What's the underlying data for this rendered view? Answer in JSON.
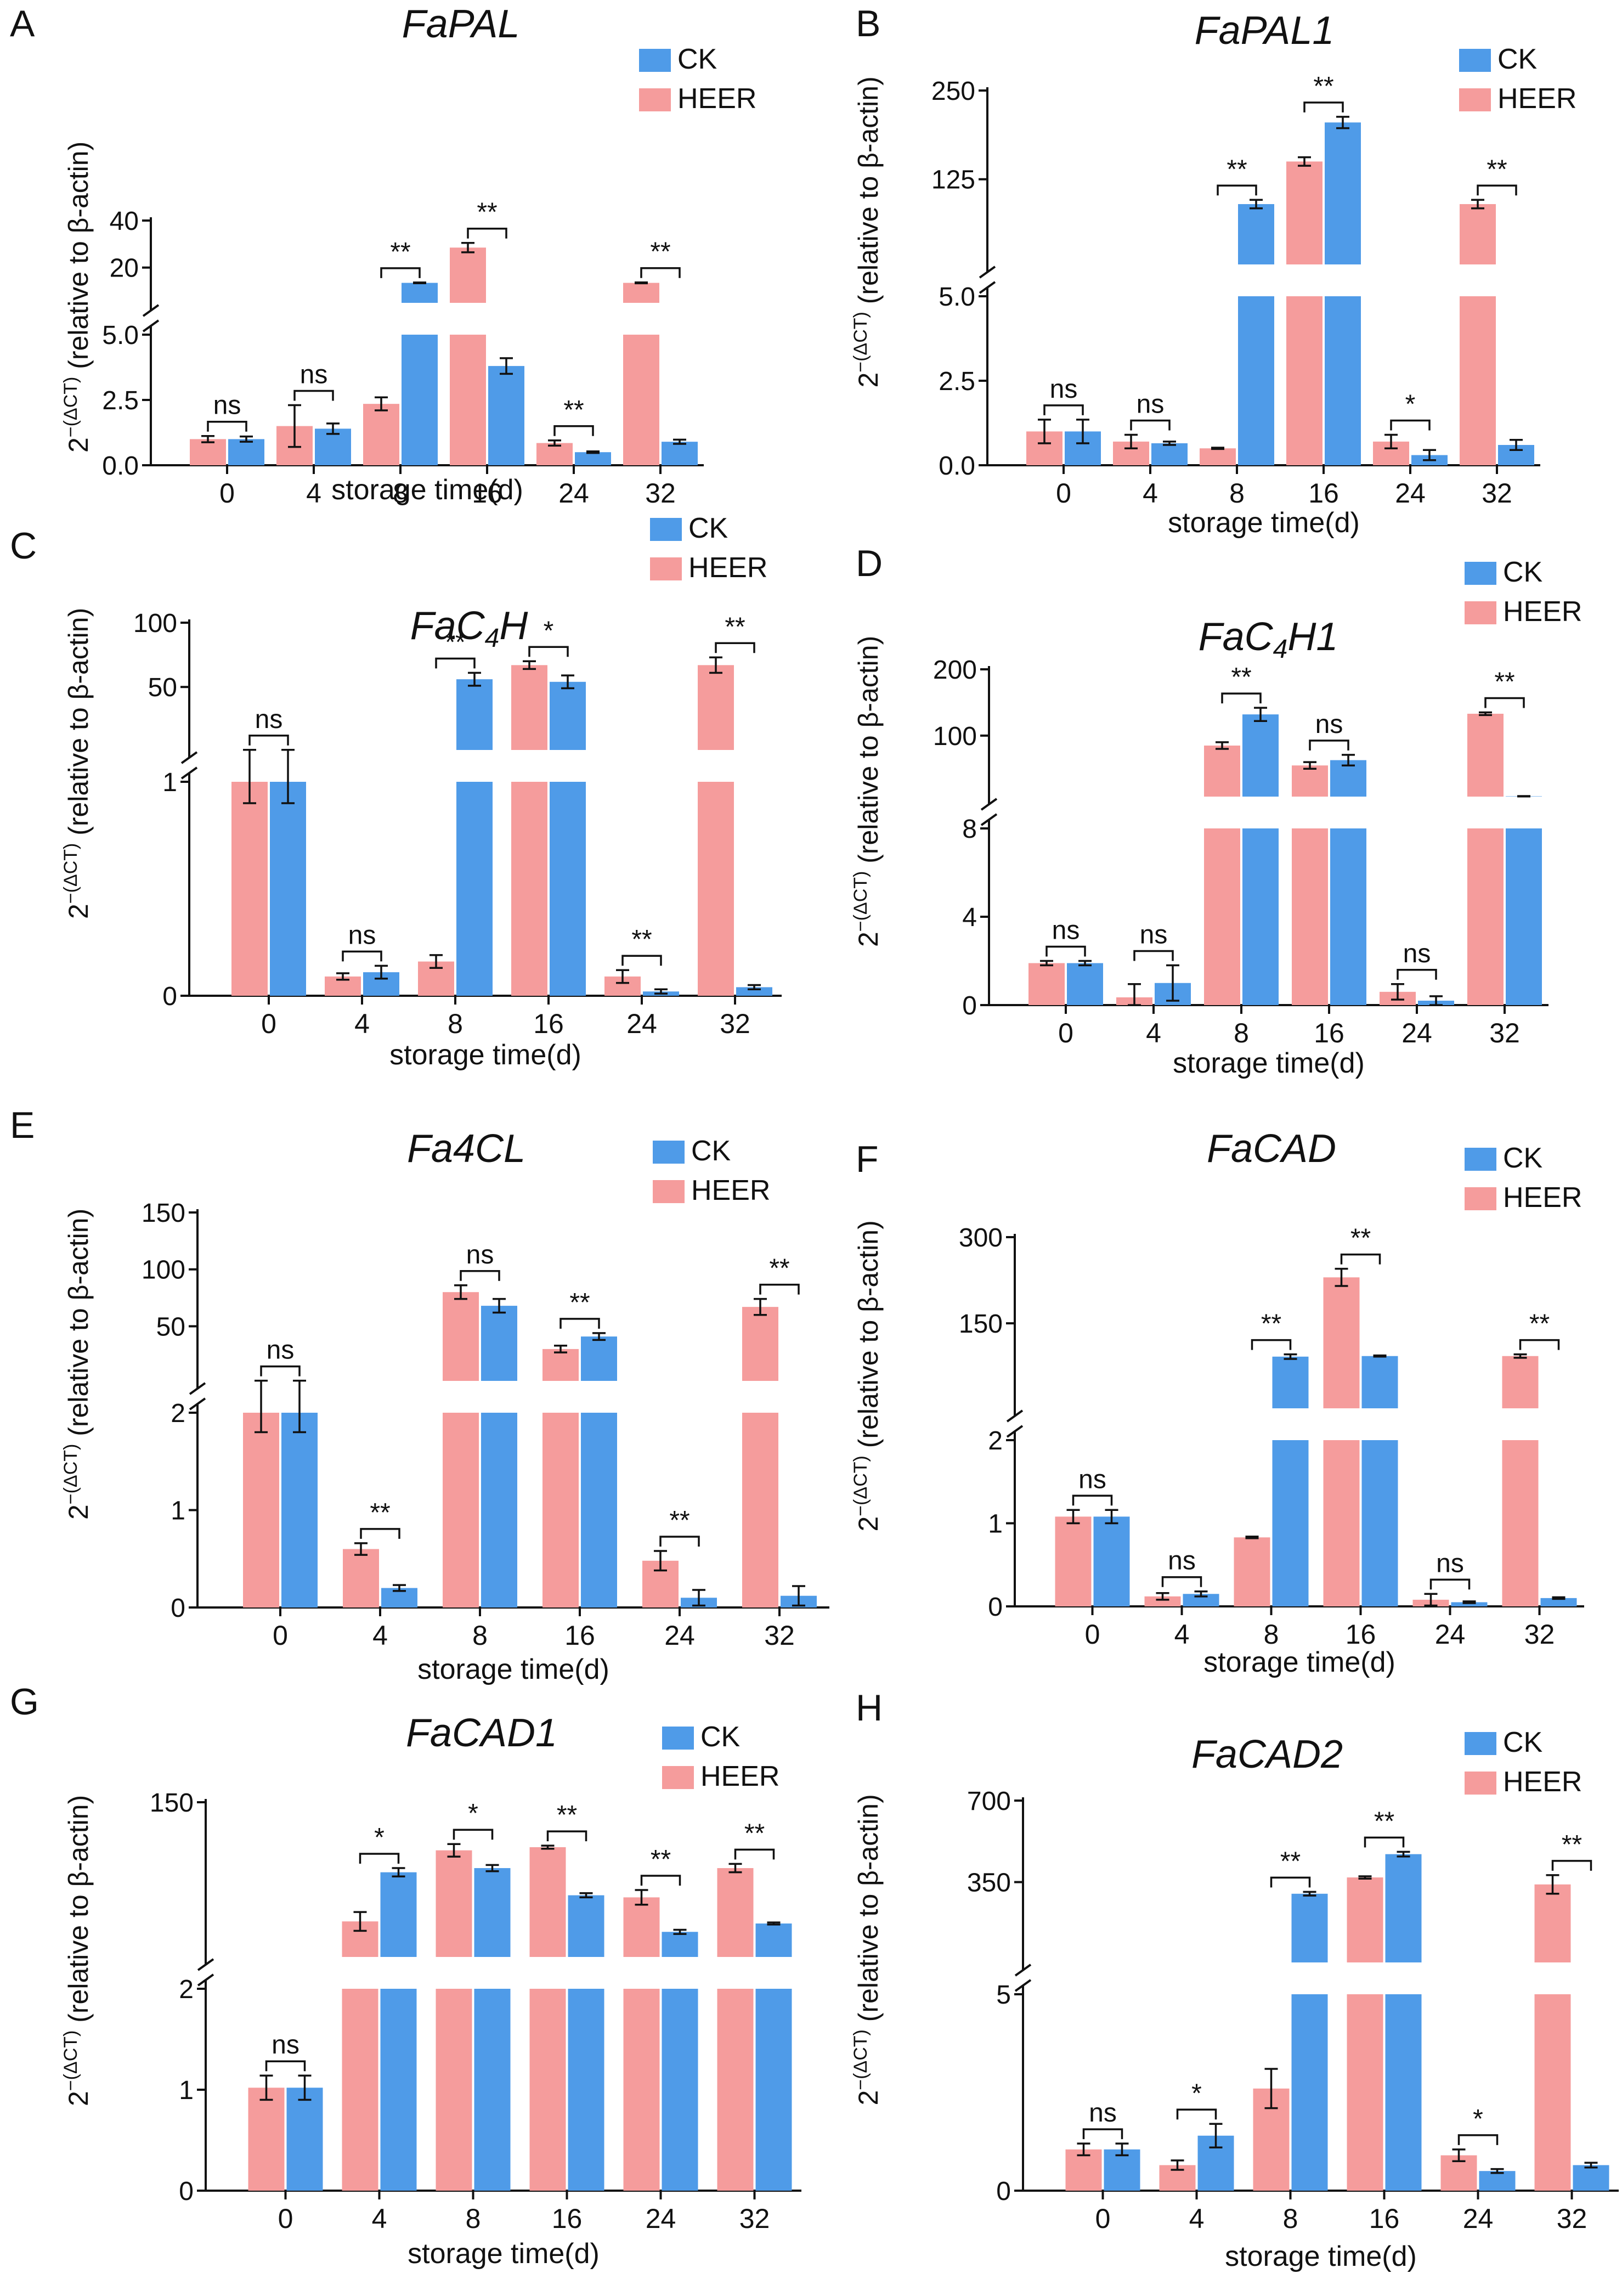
{
  "figure": {
    "y_label_main": "(relative  to β-actin)",
    "y_label_prefix": "2",
    "y_label_exp": "−(ΔCT)",
    "legend": [
      {
        "name": "CK",
        "color": "#4f9be8"
      },
      {
        "name": "HEER",
        "color": "#f59c9c"
      }
    ]
  },
  "chart_data": [
    {
      "panel": "A",
      "title": "FaPAL",
      "type": "bar",
      "categories": [
        "0",
        "4",
        "8",
        "16",
        "24",
        "32"
      ],
      "xlabel": "storage time(d)",
      "lower_ticks": [
        "0.0",
        "2.5",
        "5.0"
      ],
      "upper_ticks": [
        "20",
        "40"
      ],
      "series": [
        {
          "name": "HEER",
          "values": [
            1.0,
            1.5,
            2.35,
            28.5,
            0.85,
            13.5
          ],
          "errors": [
            0.12,
            0.8,
            0.25,
            2.0,
            0.1,
            0.2
          ]
        },
        {
          "name": "CK",
          "values": [
            1.0,
            1.4,
            13.5,
            3.8,
            0.5,
            0.9
          ],
          "errors": [
            0.1,
            0.2,
            0.15,
            0.3,
            0.03,
            0.08
          ]
        }
      ],
      "significance": [
        "ns",
        "ns",
        "**",
        "**",
        "**",
        "**"
      ]
    },
    {
      "panel": "B",
      "title": "FaPAL1",
      "type": "bar",
      "categories": [
        "0",
        "4",
        "8",
        "16",
        "24",
        "32"
      ],
      "xlabel": "storage time(d)",
      "lower_ticks": [
        "0.0",
        "2.5",
        "5.0"
      ],
      "upper_ticks": [
        "125",
        "250"
      ],
      "series": [
        {
          "name": "HEER",
          "values": [
            1.0,
            0.7,
            0.5,
            150,
            0.7,
            90
          ],
          "errors": [
            0.35,
            0.2,
            0.02,
            6,
            0.2,
            6
          ]
        },
        {
          "name": "CK",
          "values": [
            1.0,
            0.65,
            90,
            205,
            0.3,
            0.6
          ],
          "errors": [
            0.35,
            0.05,
            6,
            8,
            0.15,
            0.15
          ]
        }
      ],
      "significance": [
        "ns",
        "ns",
        "**",
        "**",
        "*",
        "**"
      ]
    },
    {
      "panel": "C",
      "title": "FaC4H",
      "type": "bar",
      "categories": [
        "0",
        "4",
        "8",
        "16",
        "24",
        "32"
      ],
      "xlabel": "storage time(d)",
      "lower_ticks": [
        "0",
        "1"
      ],
      "upper_ticks": [
        "50",
        "100"
      ],
      "series": [
        {
          "name": "HEER",
          "values": [
            1.0,
            0.09,
            0.16,
            67,
            0.09,
            67
          ],
          "errors": [
            0.1,
            0.015,
            0.03,
            3,
            0.03,
            6
          ]
        },
        {
          "name": "CK",
          "values": [
            1.0,
            0.11,
            56,
            54,
            0.02,
            0.04
          ],
          "errors": [
            0.1,
            0.03,
            5,
            5,
            0.01,
            0.01
          ]
        }
      ],
      "significance": [
        "ns",
        "ns",
        "**",
        "*",
        "**",
        "**"
      ]
    },
    {
      "panel": "D",
      "title": "FaC4H1",
      "type": "bar",
      "categories": [
        "0",
        "4",
        "8",
        "16",
        "24",
        "32"
      ],
      "xlabel": "storage time(d)",
      "lower_ticks": [
        "0",
        "4",
        "8"
      ],
      "upper_ticks": [
        "100",
        "200"
      ],
      "series": [
        {
          "name": "HEER",
          "values": [
            1.9,
            0.35,
            85,
            55,
            0.6,
            133
          ],
          "errors": [
            0.1,
            0.6,
            5,
            5,
            0.35,
            2
          ]
        },
        {
          "name": "CK",
          "values": [
            1.9,
            1.0,
            132,
            63,
            0.2,
            8.5
          ],
          "errors": [
            0.1,
            0.8,
            10,
            8,
            0.2,
            0.3
          ]
        }
      ],
      "significance": [
        "ns",
        "ns",
        "**",
        "ns",
        "ns",
        "**"
      ]
    },
    {
      "panel": "E",
      "title": "Fa4CL",
      "type": "bar",
      "categories": [
        "0",
        "4",
        "8",
        "16",
        "24",
        "32"
      ],
      "xlabel": "storage time(d)",
      "lower_ticks": [
        "0",
        "1",
        "2"
      ],
      "upper_ticks": [
        "50",
        "100",
        "150"
      ],
      "series": [
        {
          "name": "HEER",
          "values": [
            2.0,
            0.6,
            80,
            30,
            0.48,
            67
          ],
          "errors": [
            0.2,
            0.06,
            6,
            3,
            0.1,
            7
          ]
        },
        {
          "name": "CK",
          "values": [
            2.0,
            0.2,
            68,
            41,
            0.1,
            0.12
          ],
          "errors": [
            0.2,
            0.03,
            6,
            3,
            0.08,
            0.1
          ]
        }
      ],
      "significance": [
        "ns",
        "**",
        "ns",
        "**",
        "**",
        "**"
      ]
    },
    {
      "panel": "F",
      "title": "FaCAD",
      "type": "bar",
      "categories": [
        "0",
        "4",
        "8",
        "16",
        "24",
        "32"
      ],
      "xlabel": "storage time(d)",
      "lower_ticks": [
        "0",
        "1",
        "2"
      ],
      "upper_ticks": [
        "150",
        "300"
      ],
      "series": [
        {
          "name": "HEER",
          "values": [
            1.08,
            0.12,
            0.83,
            230,
            0.08,
            93
          ],
          "errors": [
            0.08,
            0.04,
            0.01,
            15,
            0.07,
            3
          ]
        },
        {
          "name": "CK",
          "values": [
            1.08,
            0.15,
            92,
            93,
            0.05,
            0.1
          ],
          "errors": [
            0.08,
            0.03,
            4,
            1,
            0.01,
            0.01
          ]
        }
      ],
      "significance": [
        "ns",
        "ns",
        "**",
        "**",
        "ns",
        "**"
      ]
    },
    {
      "panel": "G",
      "title": "FaCAD1",
      "type": "bar",
      "categories": [
        "0",
        "4",
        "8",
        "16",
        "24",
        "32"
      ],
      "xlabel": "storage time(d)",
      "lower_ticks": [
        "0",
        "1",
        "2"
      ],
      "upper_ticks": [
        "150"
      ],
      "series": [
        {
          "name": "HEER",
          "values": [
            1.02,
            36,
            104,
            107,
            59,
            87
          ],
          "errors": [
            0.12,
            9,
            6,
            1.5,
            7,
            4
          ]
        },
        {
          "name": "CK",
          "values": [
            1.02,
            83,
            87,
            61,
            26,
            34
          ],
          "errors": [
            0.12,
            4,
            3,
            2,
            2,
            1
          ]
        }
      ],
      "significance": [
        "ns",
        "*",
        "*",
        "**",
        "**",
        "**"
      ]
    },
    {
      "panel": "H",
      "title": "FaCAD2",
      "type": "bar",
      "categories": [
        "0",
        "4",
        "8",
        "16",
        "24",
        "32"
      ],
      "xlabel": "storage time(d)",
      "lower_ticks": [
        "0",
        "5"
      ],
      "upper_ticks": [
        "350",
        "700"
      ],
      "series": [
        {
          "name": "HEER",
          "values": [
            1.05,
            0.65,
            2.6,
            370,
            0.9,
            340
          ],
          "errors": [
            0.15,
            0.12,
            0.5,
            5,
            0.15,
            40
          ]
        },
        {
          "name": "CK",
          "values": [
            1.05,
            1.4,
            300,
            470,
            0.5,
            0.65
          ],
          "errors": [
            0.15,
            0.3,
            8,
            10,
            0.05,
            0.06
          ]
        }
      ],
      "significance": [
        "ns",
        "*",
        "**",
        "**",
        "*",
        "**"
      ]
    }
  ]
}
